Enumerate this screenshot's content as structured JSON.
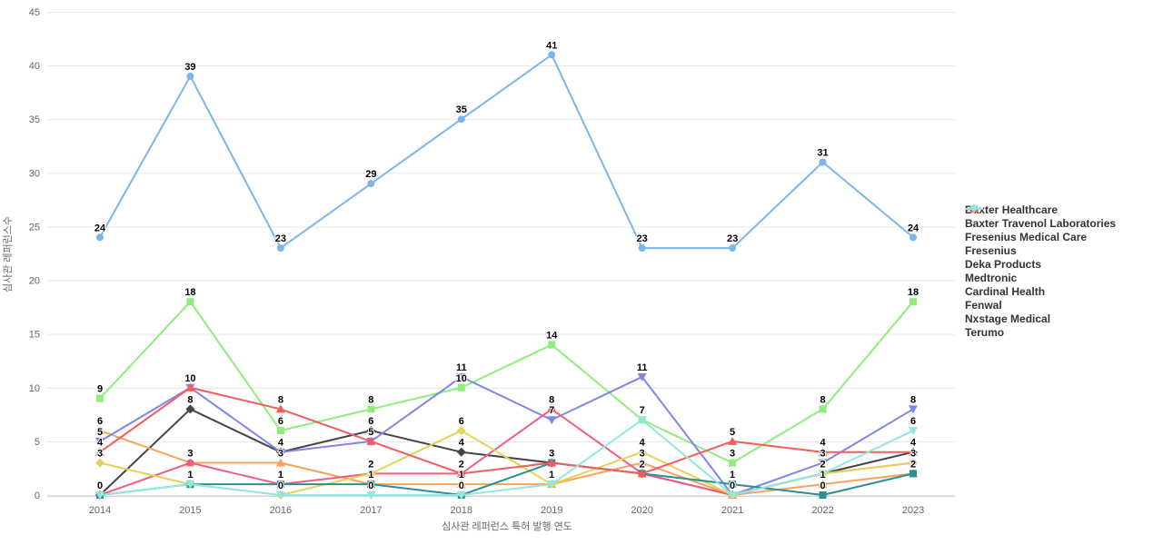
{
  "chart_data": {
    "type": "line",
    "title": "",
    "xlabel": "심사관 레퍼런스 특허 발행 연도",
    "ylabel": "심사관 레퍼런스수",
    "categories": [
      "2014",
      "2015",
      "2016",
      "2017",
      "2018",
      "2019",
      "2020",
      "2021",
      "2022",
      "2023"
    ],
    "ylim": [
      0,
      45
    ],
    "yticks": [
      0,
      5,
      10,
      15,
      20,
      25,
      30,
      35,
      40,
      45
    ],
    "grid": true,
    "data_labels": true,
    "legend_position": "right",
    "colors": {
      "grid_line": "#e6e6e6",
      "axis_line": "#ccd6eb",
      "tick_text": "#666666",
      "data_label_text": "#000000",
      "legend_text": "#333333",
      "background": "#ffffff"
    },
    "series": [
      {
        "name": "Baxter Healthcare",
        "color": "#7cb5ec",
        "symbol": "circle",
        "values": [
          24,
          39,
          23,
          29,
          35,
          41,
          23,
          23,
          31,
          24
        ]
      },
      {
        "name": "Baxter Travenol Laboratories",
        "color": "#434348",
        "symbol": "diamond",
        "values": [
          0,
          8,
          4,
          6,
          4,
          3,
          2,
          0,
          2,
          4
        ]
      },
      {
        "name": "Fresenius Medical Care",
        "color": "#90ed7d",
        "symbol": "square",
        "values": [
          9,
          18,
          6,
          8,
          10,
          14,
          7,
          3,
          8,
          18
        ]
      },
      {
        "name": "Fresenius",
        "color": "#f7a35c",
        "symbol": "triangle",
        "values": [
          6,
          3,
          3,
          1,
          1,
          1,
          3,
          0,
          1,
          2
        ]
      },
      {
        "name": "Deka Products",
        "color": "#8085e9",
        "symbol": "triangle-down",
        "values": [
          5,
          10,
          4,
          5,
          11,
          7,
          11,
          0,
          3,
          8
        ]
      },
      {
        "name": "Medtronic",
        "color": "#f15c80",
        "symbol": "circle",
        "values": [
          0,
          3,
          1,
          2,
          2,
          8,
          2,
          0,
          2,
          3
        ]
      },
      {
        "name": "Cardinal Health",
        "color": "#e4d354",
        "symbol": "diamond",
        "values": [
          3,
          1,
          0,
          2,
          6,
          1,
          4,
          0,
          2,
          3
        ]
      },
      {
        "name": "Fenwal",
        "color": "#2b908f",
        "symbol": "square",
        "values": [
          0,
          1,
          1,
          1,
          0,
          3,
          2,
          1,
          0,
          2
        ]
      },
      {
        "name": "Nxstage Medical",
        "color": "#f45b5b",
        "symbol": "triangle",
        "values": [
          4,
          10,
          8,
          5,
          2,
          3,
          2,
          5,
          4,
          4
        ]
      },
      {
        "name": "Terumo",
        "color": "#91e8e1",
        "symbol": "triangle-down",
        "values": [
          0,
          1,
          0,
          0,
          0,
          1,
          7,
          0,
          2,
          6
        ]
      }
    ]
  }
}
